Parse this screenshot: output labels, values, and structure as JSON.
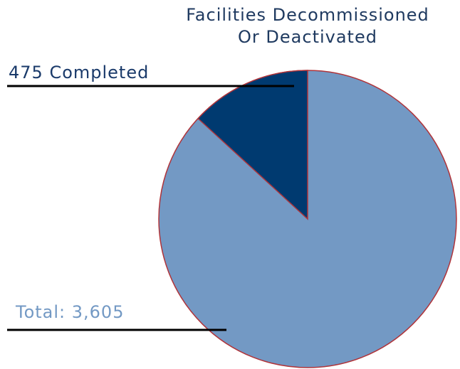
{
  "chart_data": {
    "type": "pie",
    "title": [
      "Facilities Decommissioned",
      "Or Deactivated"
    ],
    "slices": [
      {
        "label": "475 Completed",
        "value": 475,
        "color": "#003a70"
      }
    ],
    "total": {
      "label": "Total: 3,605",
      "value": 3605,
      "color": "#7399c4"
    }
  }
}
